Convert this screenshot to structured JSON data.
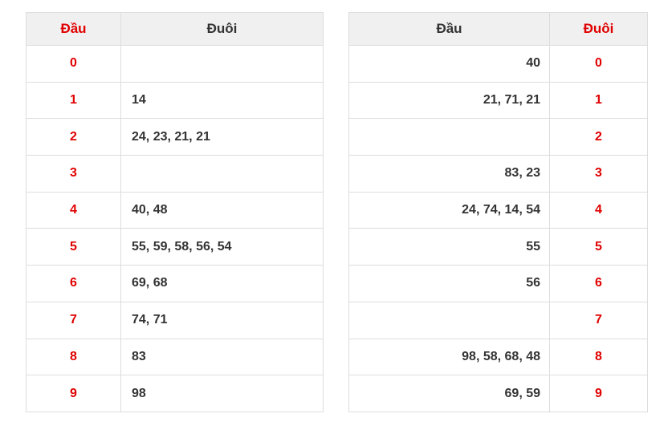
{
  "colors": {
    "accent_red": "#e00000",
    "text_dark": "#333333",
    "header_bg": "#f0f0f0",
    "border": "#dddddd"
  },
  "left_table": {
    "headers": {
      "dau": "Đầu",
      "duoi": "Đuôi"
    },
    "rows": [
      {
        "digit": "0",
        "numbers": ""
      },
      {
        "digit": "1",
        "numbers": "14"
      },
      {
        "digit": "2",
        "numbers": "24, 23, 21, 21"
      },
      {
        "digit": "3",
        "numbers": ""
      },
      {
        "digit": "4",
        "numbers": "40, 48"
      },
      {
        "digit": "5",
        "numbers": "55, 59, 58, 56, 54"
      },
      {
        "digit": "6",
        "numbers": "69, 68"
      },
      {
        "digit": "7",
        "numbers": "74, 71"
      },
      {
        "digit": "8",
        "numbers": "83"
      },
      {
        "digit": "9",
        "numbers": "98"
      }
    ]
  },
  "right_table": {
    "headers": {
      "dau": "Đầu",
      "duoi": "Đuôi"
    },
    "rows": [
      {
        "numbers": "40",
        "digit": "0"
      },
      {
        "numbers": "21, 71, 21",
        "digit": "1"
      },
      {
        "numbers": "",
        "digit": "2"
      },
      {
        "numbers": "83, 23",
        "digit": "3"
      },
      {
        "numbers": "24, 74, 14, 54",
        "digit": "4"
      },
      {
        "numbers": "55",
        "digit": "5"
      },
      {
        "numbers": "56",
        "digit": "6"
      },
      {
        "numbers": "",
        "digit": "7"
      },
      {
        "numbers": "98, 58, 68, 48",
        "digit": "8"
      },
      {
        "numbers": "69, 59",
        "digit": "9"
      }
    ]
  }
}
